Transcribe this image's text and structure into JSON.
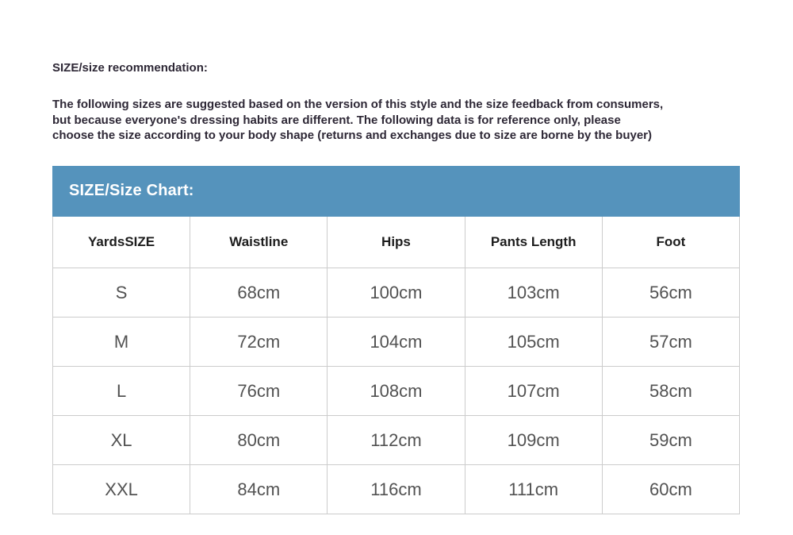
{
  "recommendation": {
    "title": "SIZE/size recommendation:",
    "lines": [
      "The following sizes are suggested based on the version of this style and the size feedback from consumers,",
      "but because everyone's dressing habits are different. The following data is for reference only, please",
      "choose the size according to your body shape (returns and exchanges due to size are borne by the buyer)"
    ]
  },
  "size_chart": {
    "title": "SIZE/Size Chart:",
    "columns": [
      "YardsSIZE",
      "Waistline",
      "Hips",
      "Pants Length",
      "Foot"
    ],
    "rows": [
      [
        "S",
        "68cm",
        "100cm",
        "103cm",
        "56cm"
      ],
      [
        "M",
        "72cm",
        "104cm",
        "105cm",
        "57cm"
      ],
      [
        "L",
        "76cm",
        "108cm",
        "107cm",
        "58cm"
      ],
      [
        "XL",
        "80cm",
        "112cm",
        "109cm",
        "59cm"
      ],
      [
        "XXL",
        "84cm",
        "116cm",
        "111cm",
        "60cm"
      ]
    ]
  },
  "colors": {
    "banner_background": "#5593bc",
    "banner_text": "#ffffff",
    "table_border": "#cccccc",
    "header_text": "#1d1d1d",
    "cell_text": "#525252",
    "body_text": "#2e2836",
    "page_background": "#ffffff"
  }
}
